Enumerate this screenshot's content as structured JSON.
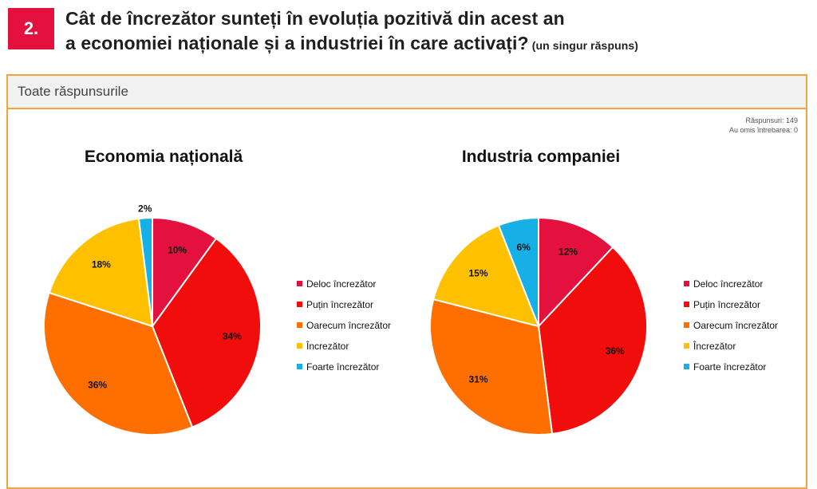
{
  "question": {
    "number": "2.",
    "title_line1": "Cât de încrezător sunteți în evoluția pozitivă din acest an",
    "title_line2": "a economiei naționale și a industriei în care activați?",
    "note": "(un singur răspuns)"
  },
  "panel": {
    "header": "Toate răspunsurile",
    "responses": "Răspunsuri: 149",
    "skipped": "Au omis întrebarea: 0"
  },
  "colors": {
    "accent": "#e4113f",
    "panel_border": "#f5a342"
  },
  "chart_data": [
    {
      "type": "pie",
      "title": "Economia națională",
      "categories": [
        "Deloc încrezător",
        "Puțin încrezător",
        "Oarecum încrezător",
        "Încrezător",
        "Foarte încrezător"
      ],
      "values": [
        10,
        34,
        36,
        18,
        2
      ],
      "labels": [
        "10%",
        "34%",
        "36%",
        "18%",
        "2%"
      ],
      "colors": [
        "#e4113f",
        "#f20d0d",
        "#ff6f00",
        "#ffc000",
        "#16b0e6"
      ],
      "legend": "right"
    },
    {
      "type": "pie",
      "title": "Industria companiei",
      "categories": [
        "Deloc încrezător",
        "Puțin încrezător",
        "Oarecum încrezător",
        "Încrezător",
        "Foarte încrezător"
      ],
      "values": [
        12,
        36,
        31,
        15,
        6
      ],
      "labels": [
        "12%",
        "36%",
        "31%",
        "15%",
        "6%"
      ],
      "colors": [
        "#e4113f",
        "#f20d0d",
        "#ff6f00",
        "#ffc000",
        "#16b0e6"
      ],
      "legend": "right"
    }
  ]
}
